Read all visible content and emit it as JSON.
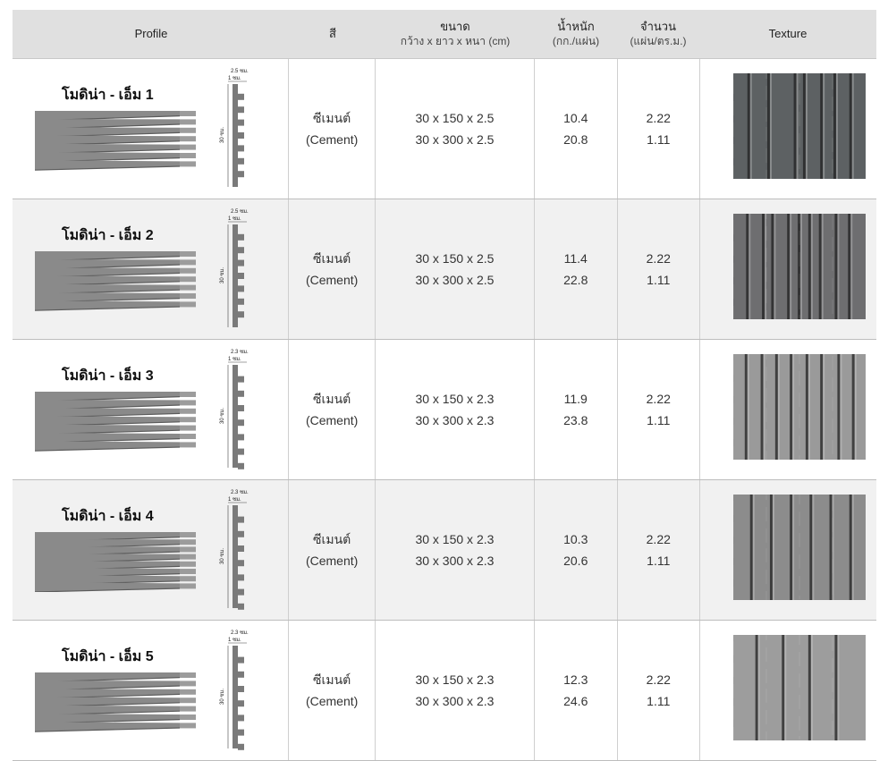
{
  "header": {
    "profile": "Profile",
    "color": "สี",
    "size_title": "ขนาด",
    "size_sub": "กว้าง x ยาว x หนา (cm)",
    "weight_title": "น้ำหนัก",
    "weight_sub": "(กก./แผ่น)",
    "qty_title": "จำนวน",
    "qty_sub": "(แผ่น/ตร.ม.)",
    "texture": "Texture"
  },
  "unit_cm": "ซม.",
  "rows": [
    {
      "name": "โมดิน่า - เอ็ม 1",
      "thickness_label": "2.5 ซม.",
      "lip_label": "1 ซม.",
      "height_label": "30 ซม.",
      "color_th": "ซีเมนต์",
      "color_en": "(Cement)",
      "size1": "30 x 150 x 2.5",
      "size2": "30 x 300 x 2.5",
      "weight1": "10.4",
      "weight2": "20.8",
      "qty1": "2.22",
      "qty2": "1.11",
      "texture_color": "#5d6163"
    },
    {
      "name": "โมดิน่า - เอ็ม 2",
      "thickness_label": "2.5 ซม.",
      "lip_label": "1 ซม.",
      "height_label": "30 ซม.",
      "color_th": "ซีเมนต์",
      "color_en": "(Cement)",
      "size1": "30 x 150 x 2.5",
      "size2": "30 x 300 x 2.5",
      "weight1": "11.4",
      "weight2": "22.8",
      "qty1": "2.22",
      "qty2": "1.11",
      "texture_color": "#6e6e70"
    },
    {
      "name": "โมดิน่า - เอ็ม 3",
      "thickness_label": "2.3 ซม.",
      "lip_label": "1 ซม.",
      "height_label": "30 ซม.",
      "color_th": "ซีเมนต์",
      "color_en": "(Cement)",
      "size1": "30 x 150 x 2.3",
      "size2": "30 x 300 x 2.3",
      "weight1": "11.9",
      "weight2": "23.8",
      "qty1": "2.22",
      "qty2": "1.11",
      "texture_color": "#9a9a9a"
    },
    {
      "name": "โมดิน่า - เอ็ม 4",
      "thickness_label": "2.3 ซม.",
      "lip_label": "1 ซม.",
      "height_label": "30 ซม.",
      "color_th": "ซีเมนต์",
      "color_en": "(Cement)",
      "size1": "30 x 150 x 2.3",
      "size2": "30 x 300 x 2.3",
      "weight1": "10.3",
      "weight2": "20.6",
      "qty1": "2.22",
      "qty2": "1.11",
      "texture_color": "#8c8c8c"
    },
    {
      "name": "โมดิน่า - เอ็ม 5",
      "thickness_label": "2.3 ซม.",
      "lip_label": "1 ซม.",
      "height_label": "30 ซม.",
      "color_th": "ซีเมนต์",
      "color_en": "(Cement)",
      "size1": "30 x 150 x 2.3",
      "size2": "30 x 300 x 2.3",
      "weight1": "12.3",
      "weight2": "24.6",
      "qty1": "2.22",
      "qty2": "1.11",
      "texture_color": "#9d9d9d"
    }
  ]
}
